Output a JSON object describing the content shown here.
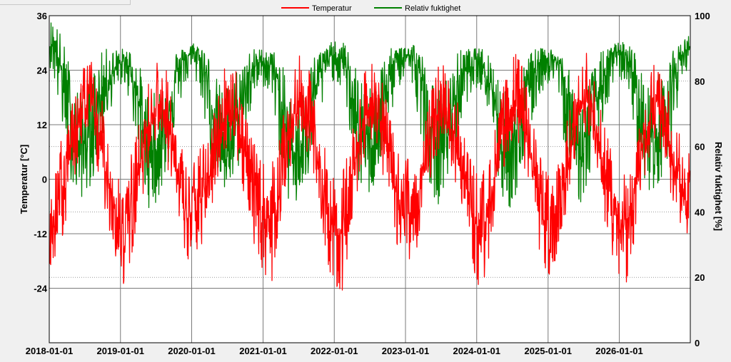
{
  "colors": {
    "temperature": "#ff0000",
    "humidity": "#008000",
    "plot_bg": "#ffffff",
    "grid": "#7a7a7a"
  },
  "chart_data": {
    "type": "line",
    "legend": {
      "placement": "top-center",
      "entries": [
        "Temperatur",
        "Relativ fuktighet"
      ]
    },
    "grid": true,
    "xaxis": {
      "type": "date",
      "range": [
        "2018-01-01",
        "2026-12-31"
      ],
      "tick_labels": [
        "2018-01-01",
        "2019-01-01",
        "2020-01-01",
        "2021-01-01",
        "2022-01-01",
        "2023-01-01",
        "2024-01-01",
        "2025-01-01",
        "2026-01-01"
      ]
    },
    "yaxis_left": {
      "label": "Temperatur [°C]",
      "range": [
        -36,
        36
      ],
      "ticks": [
        36,
        24,
        12,
        0,
        -12,
        -24
      ]
    },
    "yaxis_right": {
      "label": "Relativ fuktighet [%]",
      "range": [
        0,
        100
      ],
      "ticks": [
        100,
        80,
        60,
        40,
        20,
        0
      ]
    },
    "series": [
      {
        "name": "Temperatur",
        "axis": "left",
        "x": [
          "2018-01-15",
          "2018-02-15",
          "2018-03-15",
          "2018-04-15",
          "2018-05-15",
          "2018-06-15",
          "2018-07-15",
          "2018-08-15",
          "2018-09-15",
          "2018-10-15",
          "2018-11-15",
          "2018-12-15",
          "2019-01-15",
          "2019-02-15",
          "2019-03-15",
          "2019-04-15",
          "2019-05-15",
          "2019-06-15",
          "2019-07-15",
          "2019-08-15",
          "2019-09-15",
          "2019-10-15",
          "2019-11-15",
          "2019-12-15",
          "2020-01-15",
          "2020-02-15",
          "2020-03-15",
          "2020-04-15",
          "2020-05-15",
          "2020-06-15",
          "2020-07-15",
          "2020-08-15",
          "2020-09-15",
          "2020-10-15",
          "2020-11-15",
          "2020-12-15",
          "2021-01-15",
          "2021-02-15",
          "2021-03-15",
          "2021-04-15",
          "2021-05-15",
          "2021-06-15",
          "2021-07-15",
          "2021-08-15",
          "2021-09-15",
          "2021-10-15",
          "2021-11-15",
          "2021-12-15",
          "2022-01-15",
          "2022-02-15",
          "2022-03-15",
          "2022-04-15",
          "2022-05-15",
          "2022-06-15",
          "2022-07-15",
          "2022-08-15",
          "2022-09-15",
          "2022-10-15",
          "2022-11-15",
          "2022-12-15",
          "2023-01-15",
          "2023-02-15",
          "2023-03-15",
          "2023-04-15",
          "2023-05-15",
          "2023-06-15",
          "2023-07-15",
          "2023-08-15",
          "2023-09-15",
          "2023-10-15",
          "2023-11-15",
          "2023-12-15",
          "2024-01-15",
          "2024-02-15",
          "2024-03-15",
          "2024-04-15",
          "2024-05-15",
          "2024-06-15",
          "2024-07-15",
          "2024-08-15",
          "2024-09-15",
          "2024-10-15",
          "2024-11-15",
          "2024-12-15",
          "2025-01-15",
          "2025-02-15",
          "2025-03-15",
          "2025-04-15",
          "2025-05-15",
          "2025-06-15",
          "2025-07-15",
          "2025-08-15",
          "2025-09-15",
          "2025-10-15",
          "2025-11-15",
          "2025-12-15",
          "2026-01-15",
          "2026-02-15",
          "2026-03-15",
          "2026-04-15",
          "2026-05-15",
          "2026-06-15",
          "2026-07-15",
          "2026-08-15",
          "2026-09-15",
          "2026-10-15",
          "2026-11-15",
          "2026-12-15"
        ],
        "mean": [
          -10,
          -6,
          -2,
          4,
          10,
          15,
          17,
          15,
          9,
          3,
          -3,
          -8,
          -12,
          -9,
          -3,
          4,
          10,
          15,
          17,
          15,
          9,
          2,
          -4,
          -9,
          -6,
          -5,
          -2,
          3,
          9,
          14,
          16,
          14,
          8,
          2,
          -3,
          -7,
          -9,
          -8,
          -3,
          3,
          10,
          15,
          17,
          15,
          9,
          2,
          -4,
          -10,
          -13,
          -9,
          -4,
          3,
          10,
          15,
          17,
          15,
          9,
          2,
          -3,
          -9,
          -6,
          -6,
          -3,
          3,
          10,
          14,
          16,
          14,
          8,
          2,
          -3,
          -8,
          -13,
          -9,
          -4,
          3,
          10,
          15,
          17,
          15,
          9,
          2,
          -4,
          -10,
          -8,
          -7,
          -3,
          3,
          10,
          15,
          17,
          15,
          9,
          2,
          -3,
          -9,
          -12,
          -10,
          -4,
          3,
          10,
          15,
          16,
          14,
          8,
          3,
          -2,
          -6
        ],
        "min": [
          -22,
          -16,
          -12,
          -6,
          1,
          6,
          8,
          6,
          -1,
          -7,
          -14,
          -19,
          -24,
          -22,
          -14,
          -6,
          1,
          7,
          9,
          6,
          -1,
          -8,
          -15,
          -22,
          -17,
          -16,
          -12,
          -6,
          0,
          6,
          8,
          5,
          -2,
          -8,
          -14,
          -19,
          -22,
          -24,
          -14,
          -6,
          1,
          7,
          9,
          6,
          -1,
          -9,
          -15,
          -22,
          -25,
          -28,
          -15,
          -6,
          1,
          7,
          9,
          6,
          -1,
          -9,
          -14,
          -20,
          -18,
          -17,
          -13,
          -6,
          1,
          6,
          8,
          5,
          -2,
          -8,
          -14,
          -20,
          -25,
          -22,
          -15,
          -6,
          1,
          7,
          9,
          6,
          -1,
          -9,
          -15,
          -23,
          -21,
          -20,
          -14,
          -6,
          1,
          7,
          9,
          6,
          -1,
          -9,
          -14,
          -21,
          -24,
          -25,
          -15,
          -6,
          1,
          7,
          8,
          5,
          -2,
          -7,
          -13,
          -18
        ],
        "max": [
          4,
          7,
          10,
          14,
          20,
          25,
          28,
          26,
          20,
          14,
          8,
          4,
          1,
          4,
          9,
          14,
          20,
          25,
          28,
          26,
          20,
          13,
          7,
          2,
          6,
          7,
          9,
          14,
          20,
          25,
          28,
          26,
          20,
          13,
          8,
          5,
          3,
          4,
          8,
          14,
          20,
          25,
          28,
          26,
          20,
          13,
          7,
          2,
          0,
          3,
          8,
          14,
          20,
          25,
          28,
          26,
          20,
          13,
          8,
          3,
          6,
          6,
          9,
          14,
          20,
          25,
          27,
          25,
          19,
          13,
          8,
          4,
          1,
          3,
          8,
          14,
          20,
          25,
          28,
          26,
          20,
          13,
          7,
          2,
          4,
          5,
          9,
          14,
          20,
          25,
          28,
          26,
          20,
          13,
          8,
          3,
          1,
          2,
          8,
          14,
          20,
          25,
          27,
          25,
          19,
          14,
          9,
          6
        ]
      },
      {
        "name": "Relativ fuktighet",
        "axis": "right",
        "x": [
          "2018-01-15",
          "2018-02-15",
          "2018-03-15",
          "2018-04-15",
          "2018-05-15",
          "2018-06-15",
          "2018-07-15",
          "2018-08-15",
          "2018-09-15",
          "2018-10-15",
          "2018-11-15",
          "2018-12-15",
          "2019-01-15",
          "2019-02-15",
          "2019-03-15",
          "2019-04-15",
          "2019-05-15",
          "2019-06-15",
          "2019-07-15",
          "2019-08-15",
          "2019-09-15",
          "2019-10-15",
          "2019-11-15",
          "2019-12-15",
          "2020-01-15",
          "2020-02-15",
          "2020-03-15",
          "2020-04-15",
          "2020-05-15",
          "2020-06-15",
          "2020-07-15",
          "2020-08-15",
          "2020-09-15",
          "2020-10-15",
          "2020-11-15",
          "2020-12-15",
          "2021-01-15",
          "2021-02-15",
          "2021-03-15",
          "2021-04-15",
          "2021-05-15",
          "2021-06-15",
          "2021-07-15",
          "2021-08-15",
          "2021-09-15",
          "2021-10-15",
          "2021-11-15",
          "2021-12-15",
          "2022-01-15",
          "2022-02-15",
          "2022-03-15",
          "2022-04-15",
          "2022-05-15",
          "2022-06-15",
          "2022-07-15",
          "2022-08-15",
          "2022-09-15",
          "2022-10-15",
          "2022-11-15",
          "2022-12-15",
          "2023-01-15",
          "2023-02-15",
          "2023-03-15",
          "2023-04-15",
          "2023-05-15",
          "2023-06-15",
          "2023-07-15",
          "2023-08-15",
          "2023-09-15",
          "2023-10-15",
          "2023-11-15",
          "2023-12-15",
          "2024-01-15",
          "2024-02-15",
          "2024-03-15",
          "2024-04-15",
          "2024-05-15",
          "2024-06-15",
          "2024-07-15",
          "2024-08-15",
          "2024-09-15",
          "2024-10-15",
          "2024-11-15",
          "2024-12-15",
          "2025-01-15",
          "2025-02-15",
          "2025-03-15",
          "2025-04-15",
          "2025-05-15",
          "2025-06-15",
          "2025-07-15",
          "2025-08-15",
          "2025-09-15",
          "2025-10-15",
          "2025-11-15",
          "2025-12-15",
          "2026-01-15",
          "2026-02-15",
          "2026-03-15",
          "2026-04-15",
          "2026-05-15",
          "2026-06-15",
          "2026-07-15",
          "2026-08-15",
          "2026-09-15",
          "2026-10-15",
          "2026-11-15",
          "2026-12-15"
        ],
        "mean": [
          92,
          88,
          80,
          70,
          62,
          60,
          62,
          66,
          74,
          80,
          82,
          84,
          86,
          85,
          80,
          70,
          60,
          58,
          60,
          65,
          75,
          82,
          86,
          88,
          88,
          87,
          82,
          72,
          62,
          60,
          60,
          66,
          74,
          80,
          84,
          86,
          86,
          85,
          80,
          70,
          60,
          58,
          60,
          66,
          76,
          82,
          86,
          88,
          87,
          86,
          82,
          72,
          62,
          60,
          62,
          68,
          76,
          82,
          86,
          88,
          88,
          86,
          82,
          72,
          62,
          60,
          62,
          68,
          76,
          82,
          84,
          86,
          86,
          85,
          80,
          70,
          60,
          58,
          60,
          66,
          76,
          82,
          86,
          87,
          87,
          86,
          82,
          72,
          62,
          60,
          62,
          68,
          76,
          82,
          86,
          88,
          88,
          87,
          82,
          72,
          62,
          62,
          64,
          68,
          76,
          84,
          88,
          90
        ],
        "min": [
          84,
          72,
          62,
          52,
          44,
          44,
          46,
          50,
          58,
          66,
          72,
          76,
          80,
          74,
          64,
          52,
          42,
          40,
          44,
          48,
          58,
          68,
          76,
          80,
          80,
          76,
          64,
          54,
          46,
          44,
          46,
          50,
          58,
          66,
          74,
          78,
          78,
          74,
          62,
          50,
          42,
          40,
          44,
          48,
          58,
          68,
          74,
          80,
          80,
          76,
          66,
          54,
          46,
          44,
          46,
          50,
          58,
          68,
          76,
          80,
          80,
          76,
          66,
          54,
          46,
          42,
          46,
          50,
          58,
          66,
          74,
          78,
          78,
          74,
          62,
          50,
          42,
          40,
          44,
          48,
          58,
          68,
          74,
          78,
          80,
          76,
          64,
          52,
          44,
          42,
          46,
          50,
          58,
          68,
          74,
          80,
          80,
          78,
          66,
          54,
          46,
          46,
          48,
          52,
          58,
          68,
          78,
          84
        ],
        "max": [
          99,
          97,
          92,
          86,
          80,
          78,
          80,
          84,
          88,
          90,
          90,
          90,
          90,
          90,
          88,
          84,
          78,
          76,
          78,
          82,
          88,
          90,
          90,
          92,
          92,
          92,
          90,
          86,
          80,
          78,
          80,
          84,
          88,
          90,
          90,
          90,
          90,
          90,
          88,
          84,
          78,
          76,
          78,
          82,
          88,
          90,
          90,
          92,
          92,
          92,
          90,
          86,
          80,
          78,
          80,
          84,
          88,
          90,
          90,
          92,
          92,
          92,
          90,
          86,
          80,
          78,
          80,
          84,
          88,
          90,
          90,
          90,
          90,
          90,
          88,
          84,
          78,
          76,
          78,
          82,
          88,
          90,
          90,
          90,
          90,
          90,
          88,
          84,
          78,
          76,
          78,
          84,
          88,
          90,
          90,
          92,
          92,
          92,
          90,
          86,
          80,
          80,
          82,
          84,
          88,
          90,
          92,
          94
        ]
      }
    ]
  }
}
